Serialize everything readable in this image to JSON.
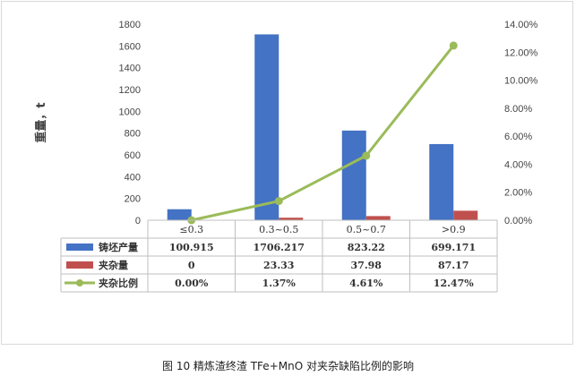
{
  "caption": "图 10  精炼渣终渣 TFe+MnO 对夹杂缺陷比例的影响",
  "chart_data": {
    "type": "bar",
    "categories": [
      "≤0.3",
      "0.3~0.5",
      "0.5~0.7",
      ">0.9"
    ],
    "series": [
      {
        "name": "铸坯产量",
        "type": "bar",
        "axis": "left",
        "color": "#4472c4",
        "values": [
          100.915,
          1706.217,
          823.22,
          699.171
        ],
        "labels": [
          "100.915",
          "1706.217",
          "823.22",
          "699.171"
        ]
      },
      {
        "name": "夹杂量",
        "type": "bar",
        "axis": "left",
        "color": "#c0504d",
        "values": [
          0,
          23.33,
          37.98,
          87.17
        ],
        "labels": [
          "0",
          "23.33",
          "37.98",
          "87.17"
        ]
      },
      {
        "name": "夹杂比例",
        "type": "line",
        "axis": "right",
        "color": "#9bbb59",
        "values": [
          0.0,
          1.37,
          4.61,
          12.47
        ],
        "labels": [
          "0.00%",
          "1.37%",
          "4.61%",
          "12.47%"
        ]
      }
    ],
    "ylabel": "重量，t",
    "ylim": [
      0,
      1800
    ],
    "y_ticks": [
      "0",
      "200",
      "400",
      "600",
      "800",
      "1000",
      "1200",
      "1400",
      "1600",
      "1800"
    ],
    "y2lim": [
      0,
      14
    ],
    "y2_ticks": [
      "0.00%",
      "2.00%",
      "4.00%",
      "6.00%",
      "8.00%",
      "10.00%",
      "12.00%",
      "14.00%"
    ],
    "grid": false,
    "legend": "data-table"
  }
}
